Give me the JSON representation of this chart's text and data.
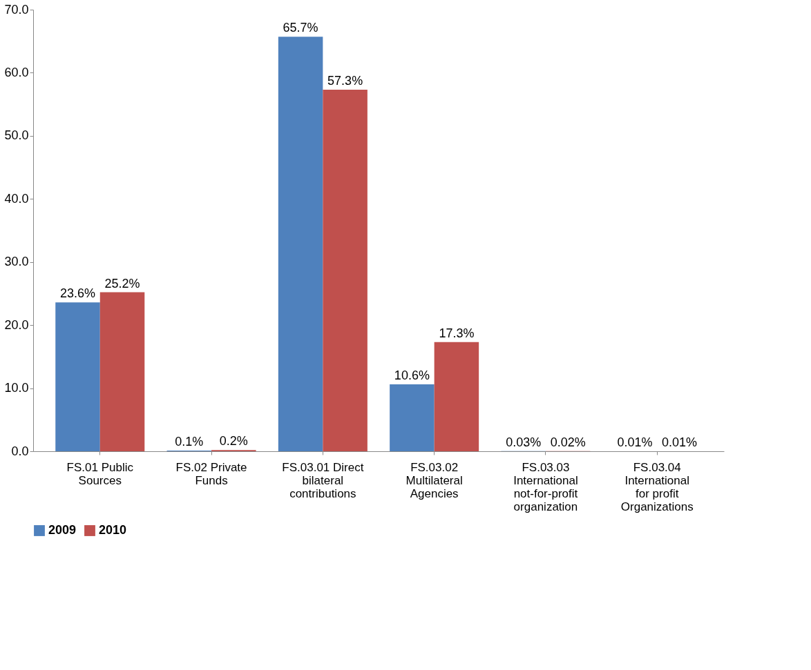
{
  "chart_data": {
    "type": "bar",
    "categories": [
      "FS.01 Public\nSources",
      "FS.02 Private\nFunds",
      "FS.03.01 Direct\nbilateral\ncontributions",
      "FS.03.02\nMultilateral\nAgencies",
      "FS.03.03\nInternational\nnot-for-profit\norganization",
      "FS.03.04\nInternational\nfor profit\nOrganizations"
    ],
    "series": [
      {
        "name": "2009",
        "color": "#4f81bd",
        "values": [
          23.6,
          0.1,
          65.7,
          10.6,
          0.03,
          0.01
        ],
        "value_labels": [
          "23.6%",
          "0.1%",
          "65.7%",
          "10.6%",
          "0.03%",
          "0.01%"
        ]
      },
      {
        "name": "2010",
        "color": "#c0504d",
        "values": [
          25.2,
          0.2,
          57.3,
          17.3,
          0.02,
          0.01
        ],
        "value_labels": [
          "25.2%",
          "0.2%",
          "57.3%",
          "17.3%",
          "0.02%",
          "0.01%"
        ]
      }
    ],
    "ylim": [
      0,
      70
    ],
    "yticks": [
      {
        "value": 0,
        "label": "0.0"
      },
      {
        "value": 10,
        "label": "10.0"
      },
      {
        "value": 20,
        "label": "20.0"
      },
      {
        "value": 30,
        "label": "30.0"
      },
      {
        "value": 40,
        "label": "40.0"
      },
      {
        "value": 50,
        "label": "50.0"
      },
      {
        "value": 60,
        "label": "60.0"
      },
      {
        "value": 70,
        "label": "70.0"
      }
    ],
    "grid": false,
    "legend": "bottom"
  }
}
